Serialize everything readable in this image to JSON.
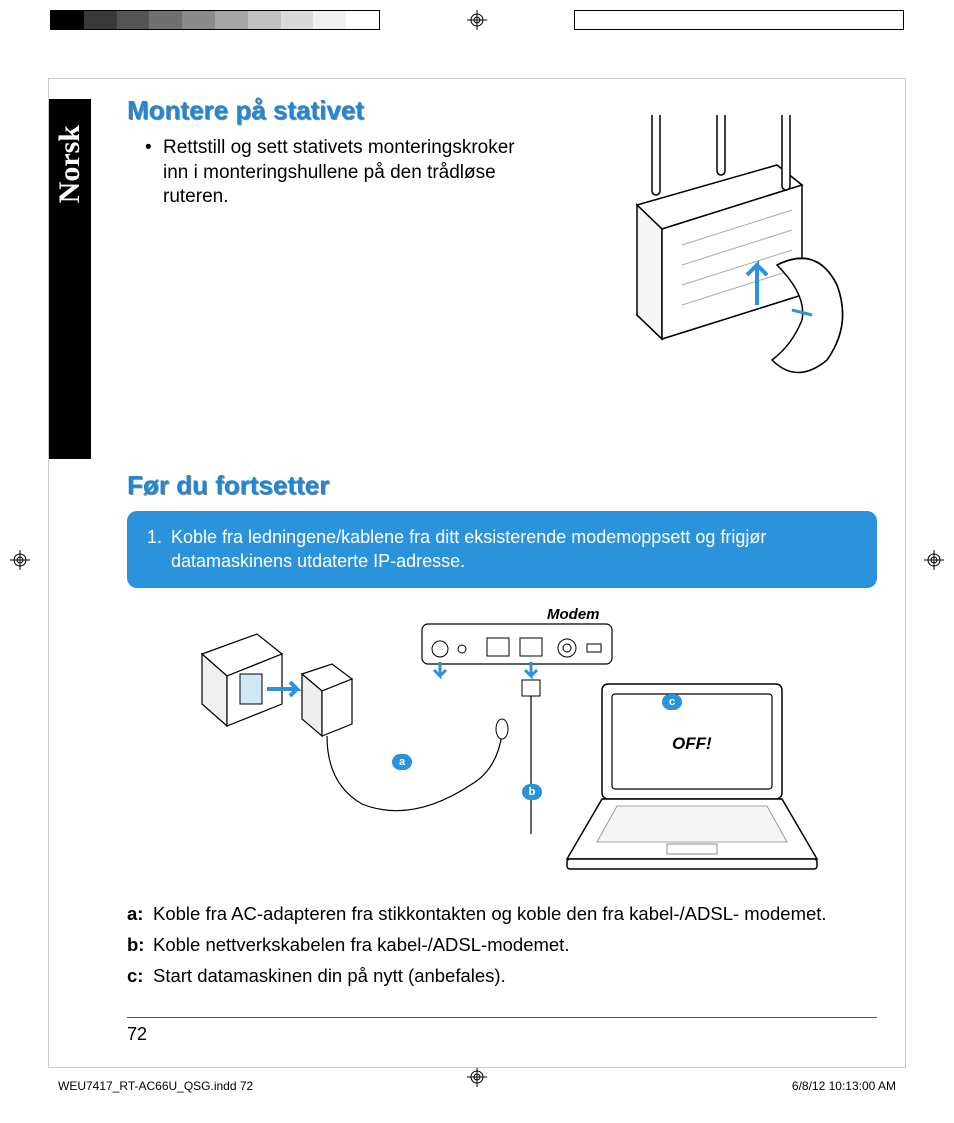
{
  "colorbar_left": [
    "#000000",
    "#3a3a3a",
    "#555555",
    "#707070",
    "#8a8a8a",
    "#a5a5a5",
    "#c0c0c0",
    "#d9d9d9",
    "#f0f0f0",
    "#ffffff"
  ],
  "colorbar_right": [
    "#ffff00",
    "#ff00ff",
    "#00ffff",
    "#ee2e24",
    "#009933",
    "#003399",
    "#f7b500",
    "#e95ba8",
    "#66ccff",
    "#ffffff"
  ],
  "lang_label": "Norsk",
  "section1_title": "Montere på stativet",
  "section1_bullet": "Rettstill og sett stativets monteringskroker inn i monteringshullene på den trådløse ruteren.",
  "section2_title": "Før du fortsetter",
  "bluebox_num": "1.",
  "bluebox_text": "Koble fra ledningene/kablene fra ditt eksisterende modemoppsett og frigjør datamaskinens utdaterte IP-adresse.",
  "diagram": {
    "modem_label": "Modem",
    "laptop_label": "OFF!",
    "label_a": "a",
    "label_b": "b",
    "label_c": "c"
  },
  "steps": {
    "a_label": "a:",
    "a_text": "Koble fra AC-adapteren fra stikkontakten og koble den fra kabel-/ADSL- modemet.",
    "b_label": "b:",
    "b_text": "Koble nettverkskabelen fra kabel-/ADSL-modemet.",
    "c_label": "c:",
    "c_text": "Start datamaskinen din på nytt (anbefales)."
  },
  "page_number": "72",
  "footer_left": "WEU7417_RT-AC66U_QSG.indd   72",
  "footer_right": "6/8/12   10:13:00 AM"
}
